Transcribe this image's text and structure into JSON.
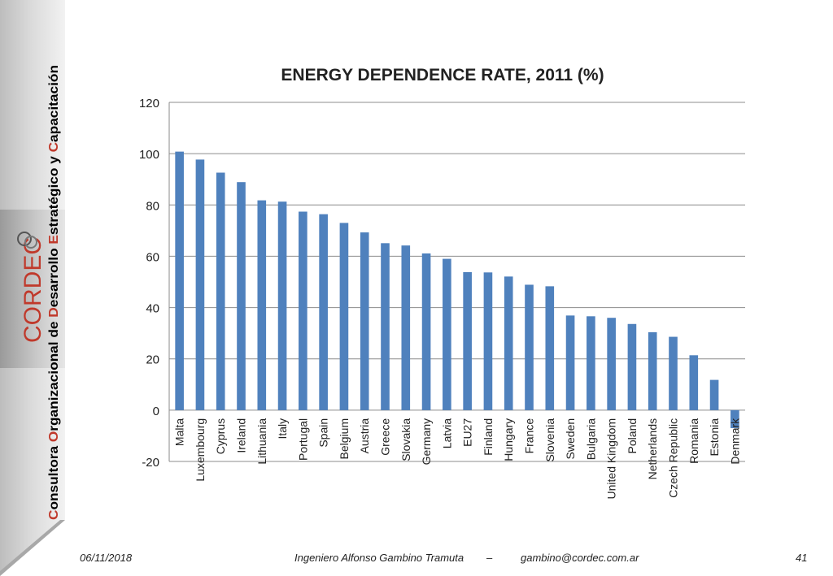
{
  "sidebar": {
    "segments": [
      {
        "initial": "C",
        "rest": "onsultora "
      },
      {
        "initial": "O",
        "rest": "rganizacional de "
      },
      {
        "initial": "D",
        "rest": "esarrollo "
      },
      {
        "initial": "E",
        "rest": "stratégico y "
      },
      {
        "initial": "C",
        "rest": "apacitación"
      }
    ],
    "logo_text": "CORDEC",
    "accent_color": "#c0392b"
  },
  "chart_data": {
    "type": "bar",
    "title": "ENERGY DEPENDENCE RATE, 2011 (%)",
    "categories": [
      "Malta",
      "Luxembourg",
      "Cyprus",
      "Ireland",
      "Lithuania",
      "Italy",
      "Portugal",
      "Spain",
      "Belgium",
      "Austria",
      "Greece",
      "Slovakia",
      "Germany",
      "Latvia",
      "EU27",
      "Finland",
      "Hungary",
      "France",
      "Slovenia",
      "Sweden",
      "Bulgaria",
      "United Kingdom",
      "Poland",
      "Netherlands",
      "Czech Republic",
      "Romania",
      "Estonia",
      "Denmark"
    ],
    "values": [
      100.8,
      97.7,
      92.6,
      88.9,
      81.8,
      81.3,
      77.4,
      76.4,
      73.0,
      69.3,
      65.1,
      64.2,
      61.1,
      59.0,
      53.8,
      53.7,
      52.1,
      48.9,
      48.3,
      36.9,
      36.6,
      36.0,
      33.6,
      30.4,
      28.6,
      21.4,
      11.8,
      -7.0
    ],
    "yticks": [
      -20,
      0,
      20,
      40,
      60,
      80,
      100,
      120
    ],
    "ylim": [
      -20,
      120
    ],
    "grid": true,
    "bar_color": "#4f81bd",
    "xlabel": "",
    "ylabel": ""
  },
  "footer": {
    "date": "06/11/2018",
    "author": "Ingeniero Alfonso Gambino Tramuta",
    "dash": "–",
    "email": "gambino@cordec.com.ar",
    "page": "41"
  }
}
